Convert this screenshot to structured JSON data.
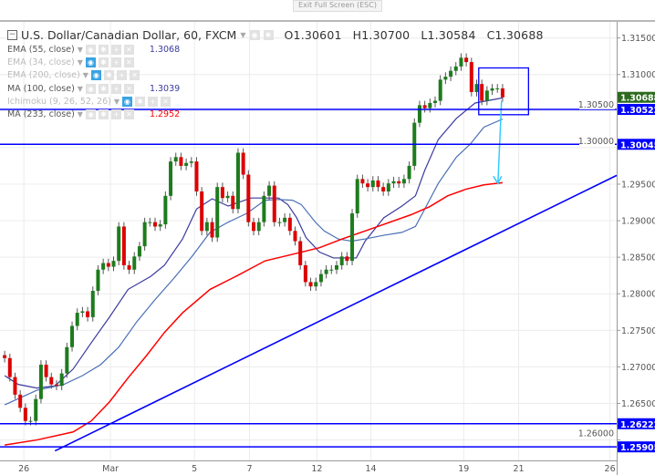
{
  "toolbar": {
    "exit_fullscreen": "Exit Full Screen (ESC)"
  },
  "legend": {
    "title": "U.S. Dollar/Canadian Dollar, 60, FXCM",
    "open": "O1.30601",
    "high": "H1.30700",
    "low": "L1.30584",
    "close": "C1.30688",
    "indicators": [
      {
        "label": "EMA (55, close)",
        "value": "1.3068",
        "color": "#3b3b9e",
        "visible": true
      },
      {
        "label": "EMA (34, close)",
        "value": "",
        "color": "#bbbbbb",
        "visible": false
      },
      {
        "label": "EMA (200, close)",
        "value": "",
        "color": "#bbbbbb",
        "visible": false
      },
      {
        "label": "MA (100, close)",
        "value": "1.3039",
        "color": "#3b3b9e",
        "visible": true
      },
      {
        "label": "Ichimoku (9, 26, 52, 26)",
        "value": "",
        "color": "#bbbbbb",
        "visible": false
      },
      {
        "label": "MA (233, close)",
        "value": "1.2952",
        "color": "#ff0000",
        "visible": true
      }
    ]
  },
  "chart_data": {
    "type": "candlestick",
    "title": "U.S. Dollar/Canadian Dollar, 60, FXCM",
    "ylim": [
      1.2572,
      1.3172
    ],
    "xlim": [
      -0.9,
      118
    ],
    "y_ticks": [
      "1.31500",
      "1.31000",
      "1.30500",
      "1.30000",
      "1.29500",
      "1.29000",
      "1.28500",
      "1.28000",
      "1.27500",
      "1.27000",
      "1.26500",
      "1.26000"
    ],
    "x_ticks": [
      {
        "label": "26",
        "x": 3.7
      },
      {
        "label": "Mar",
        "x": 20.4
      },
      {
        "label": "5",
        "x": 36.6
      },
      {
        "label": "7",
        "x": 47.2
      },
      {
        "label": "12",
        "x": 60.2
      },
      {
        "label": "14",
        "x": 70.6
      },
      {
        "label": "19",
        "x": 88.5
      },
      {
        "label": "21",
        "x": 99.1
      },
      {
        "label": "26",
        "x": 116.7
      }
    ],
    "grid": true,
    "closes": [
      1.2712,
      1.2686,
      1.2662,
      1.2644,
      1.2626,
      1.2626,
      1.2656,
      1.2703,
      1.2686,
      1.2676,
      1.2674,
      1.2691,
      1.2727,
      1.2756,
      1.2774,
      1.2776,
      1.2768,
      1.2804,
      1.2833,
      1.2842,
      1.2837,
      1.2845,
      1.2892,
      1.2839,
      1.2833,
      1.2851,
      1.2865,
      1.2898,
      1.2898,
      1.2892,
      1.2895,
      1.2934,
      1.2981,
      1.2987,
      1.2975,
      1.2979,
      1.2981,
      1.294,
      1.2886,
      1.2898,
      1.2877,
      1.2946,
      1.2931,
      1.2934,
      1.2916,
      1.2993,
      1.2963,
      1.2898,
      1.2886,
      1.2898,
      1.2934,
      1.2948,
      1.2898,
      1.2898,
      1.2904,
      1.2886,
      1.2872,
      1.2839,
      1.2816,
      1.281,
      1.2816,
      1.2827,
      1.2833,
      1.2833,
      1.2839,
      1.2851,
      1.2845,
      1.291,
      1.2957,
      1.2951,
      1.2946,
      1.2955,
      1.2946,
      1.294,
      1.2951,
      1.2954,
      1.2951,
      1.2957,
      1.2975,
      1.3034,
      1.3058,
      1.3054,
      1.3061,
      1.3064,
      1.3093,
      1.3097,
      1.3105,
      1.3111,
      1.3123,
      1.3117,
      1.3076,
      1.3087,
      1.3064,
      1.3078,
      1.3081,
      1.3081,
      1.30688
    ],
    "series": [
      {
        "name": "EMA (55, close)",
        "color": "#3b3b9e",
        "points": [
          [
            0,
            1.2688
          ],
          [
            2.6,
            1.2676
          ],
          [
            6.2,
            1.2671
          ],
          [
            9.7,
            1.2674
          ],
          [
            13.2,
            1.2697
          ],
          [
            16.7,
            1.2733
          ],
          [
            20.2,
            1.2768
          ],
          [
            23.8,
            1.2806
          ],
          [
            28.2,
            1.2824
          ],
          [
            30.8,
            1.2839
          ],
          [
            34.3,
            1.2875
          ],
          [
            37,
            1.2916
          ],
          [
            40,
            1.293
          ],
          [
            43.1,
            1.292
          ],
          [
            47.5,
            1.2931
          ],
          [
            52.8,
            1.2931
          ],
          [
            54.6,
            1.2922
          ],
          [
            56.3,
            1.2904
          ],
          [
            58.1,
            1.2877
          ],
          [
            60.7,
            1.2857
          ],
          [
            63.4,
            1.2849
          ],
          [
            67.8,
            1.2849
          ],
          [
            69.5,
            1.2872
          ],
          [
            73.1,
            1.2904
          ],
          [
            76.6,
            1.292
          ],
          [
            79.2,
            1.2934
          ],
          [
            81,
            1.2969
          ],
          [
            83.6,
            1.3011
          ],
          [
            87.1,
            1.304
          ],
          [
            90.7,
            1.3061
          ],
          [
            96,
            1.3068
          ]
        ]
      },
      {
        "name": "MA (100, close)",
        "color": "#4a6fb5",
        "points": [
          [
            0,
            1.2648
          ],
          [
            6.2,
            1.2668
          ],
          [
            11.4,
            1.2676
          ],
          [
            15,
            1.2688
          ],
          [
            18.5,
            1.2703
          ],
          [
            22,
            1.2727
          ],
          [
            25.5,
            1.2762
          ],
          [
            29,
            1.2792
          ],
          [
            32.6,
            1.2821
          ],
          [
            36.1,
            1.2851
          ],
          [
            39.6,
            1.2884
          ],
          [
            43.1,
            1.2898
          ],
          [
            46.7,
            1.291
          ],
          [
            50.2,
            1.2928
          ],
          [
            52.8,
            1.2929
          ],
          [
            55.5,
            1.2928
          ],
          [
            57.2,
            1.2922
          ],
          [
            59.9,
            1.2898
          ],
          [
            61.6,
            1.2886
          ],
          [
            64.3,
            1.2875
          ],
          [
            66.9,
            1.2872
          ],
          [
            69.5,
            1.2875
          ],
          [
            73.1,
            1.288
          ],
          [
            76.6,
            1.2884
          ],
          [
            79.2,
            1.2892
          ],
          [
            81,
            1.2916
          ],
          [
            83.6,
            1.2951
          ],
          [
            87.1,
            1.2987
          ],
          [
            89.8,
            1.3005
          ],
          [
            92.4,
            1.3028
          ],
          [
            96,
            1.3039
          ]
        ]
      },
      {
        "name": "MA (233, close)",
        "color": "#ff0000",
        "points": [
          [
            0,
            1.2593
          ],
          [
            6.2,
            1.26
          ],
          [
            13.2,
            1.2611
          ],
          [
            16.7,
            1.2626
          ],
          [
            20.2,
            1.2652
          ],
          [
            23.8,
            1.2685
          ],
          [
            27.3,
            1.2715
          ],
          [
            30.8,
            1.2747
          ],
          [
            34.3,
            1.2774
          ],
          [
            39.6,
            1.2806
          ],
          [
            44.9,
            1.2825
          ],
          [
            50.2,
            1.2845
          ],
          [
            55.5,
            1.2854
          ],
          [
            60.7,
            1.2863
          ],
          [
            65.1,
            1.2875
          ],
          [
            69.5,
            1.2886
          ],
          [
            78.3,
            1.2908
          ],
          [
            81.9,
            1.2919
          ],
          [
            85.4,
            1.2934
          ],
          [
            88.9,
            1.2943
          ],
          [
            92.4,
            1.2949
          ],
          [
            96,
            1.2952
          ]
        ]
      }
    ],
    "horizontal_lines": [
      {
        "value": "1.30522",
        "color": "#0000ff"
      },
      {
        "value": "1.30045",
        "color": "#0000ff"
      },
      {
        "value": "1.26222",
        "color": "#0000ff"
      },
      {
        "value": "1.25905",
        "color": "#0000ff"
      }
    ],
    "last_price": {
      "value": "1.30688",
      "color": "#2d6a1e"
    },
    "trendline": {
      "from": [
        9.7,
        1.2585
      ],
      "to": [
        118,
        1.2962
      ],
      "color": "#0000ff"
    },
    "rectangle": {
      "x": [
        91.4,
        101
      ],
      "y": [
        1.3045,
        1.3109
      ],
      "color": "#0000ff"
    },
    "arrow": {
      "from": [
        95.8,
        1.3064
      ],
      "to": [
        95.1,
        1.2951
      ],
      "color": "#33ccff"
    },
    "colors": {
      "up": "#1e7b1e",
      "down": "#dd0000",
      "wick": "#555555",
      "grid": "#ececec",
      "axis": "#888888"
    }
  }
}
